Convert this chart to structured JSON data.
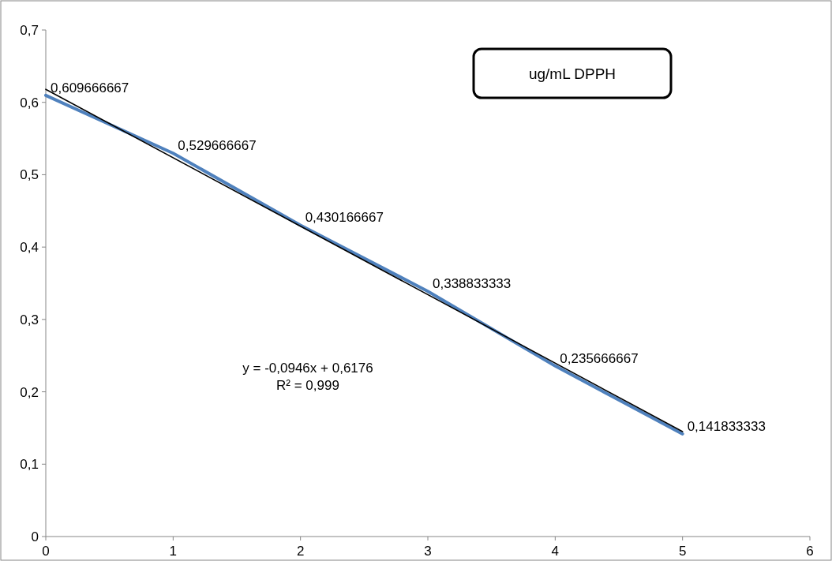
{
  "chart_data": {
    "type": "line",
    "title": "ug/mL DPPH",
    "x": [
      0,
      1,
      2,
      3,
      4,
      5
    ],
    "series": [
      {
        "color": "#4f81bd",
        "values": [
          0.609666667,
          0.529666667,
          0.430166667,
          0.338833333,
          0.235666667,
          0.141833333
        ],
        "value_labels": [
          "0,609666667",
          "0,529666667",
          "0,430166667",
          "0,338833333",
          "0,235666667",
          "0,141833333"
        ]
      },
      {
        "type": "line",
        "color": "#000000",
        "x": [
          0,
          5
        ],
        "values": [
          0.618,
          0.145
        ]
      }
    ],
    "xlim": [
      0,
      6
    ],
    "xticks": [
      0,
      1,
      2,
      3,
      4,
      5,
      6
    ],
    "ylim": [
      0,
      0.7
    ],
    "yticks": [
      0,
      {
        "value": 0.1,
        "label": "0,1"
      },
      {
        "value": 0.2,
        "label": "0,2"
      },
      {
        "value": 0.3,
        "label": "0,3"
      },
      {
        "value": 0.4,
        "label": "0,4"
      },
      {
        "value": 0.5,
        "label": "0,5"
      },
      {
        "value": 0.6,
        "label": "0,6"
      },
      {
        "value": 0.7,
        "label": "0,7"
      }
    ],
    "annotations": [
      "y = -0,0946x + 0,6176",
      "R² = 0,999"
    ],
    "grid": false,
    "marker": "none"
  }
}
